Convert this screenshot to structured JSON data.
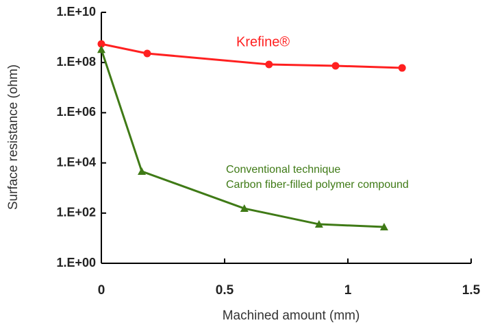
{
  "chart_data": {
    "type": "line",
    "xlabel": "Machined amount (mm)",
    "ylabel": "Surface resistance (ohm)",
    "yscale": "log",
    "xlim": [
      0,
      1.5
    ],
    "xticks": [
      0,
      0.5,
      1,
      1.5
    ],
    "ylim": [
      1,
      10000000000
    ],
    "yticks": [
      {
        "value": 1,
        "label": "1.E+00"
      },
      {
        "value": 100,
        "label": "1.E+02"
      },
      {
        "value": 10000,
        "label": "1.E+04"
      },
      {
        "value": 1000000,
        "label": "1.E+06"
      },
      {
        "value": 100000000,
        "label": "1.E+08"
      },
      {
        "value": 10000000000,
        "label": "1.E+10"
      }
    ],
    "series": [
      {
        "color": "#ff2020",
        "marker": "circle",
        "x": [
          0,
          0.186,
          0.68,
          0.95,
          1.22
        ],
        "values": [
          550000000,
          230000000,
          84000000,
          74000000,
          61000000
        ]
      },
      {
        "color": "#3f7a16",
        "marker": "triangle",
        "x": [
          0,
          0.164,
          0.58,
          0.883,
          1.147
        ],
        "values": [
          330000000,
          4600,
          153,
          36,
          28
        ]
      }
    ],
    "annotations": [
      {
        "text": "Krefine®",
        "color": "#ff2020"
      },
      {
        "text": "Conventional technique",
        "color": "#3f7a16"
      },
      {
        "text": "Carbon fiber-filled polymer compound",
        "color": "#3f7a16"
      }
    ]
  }
}
